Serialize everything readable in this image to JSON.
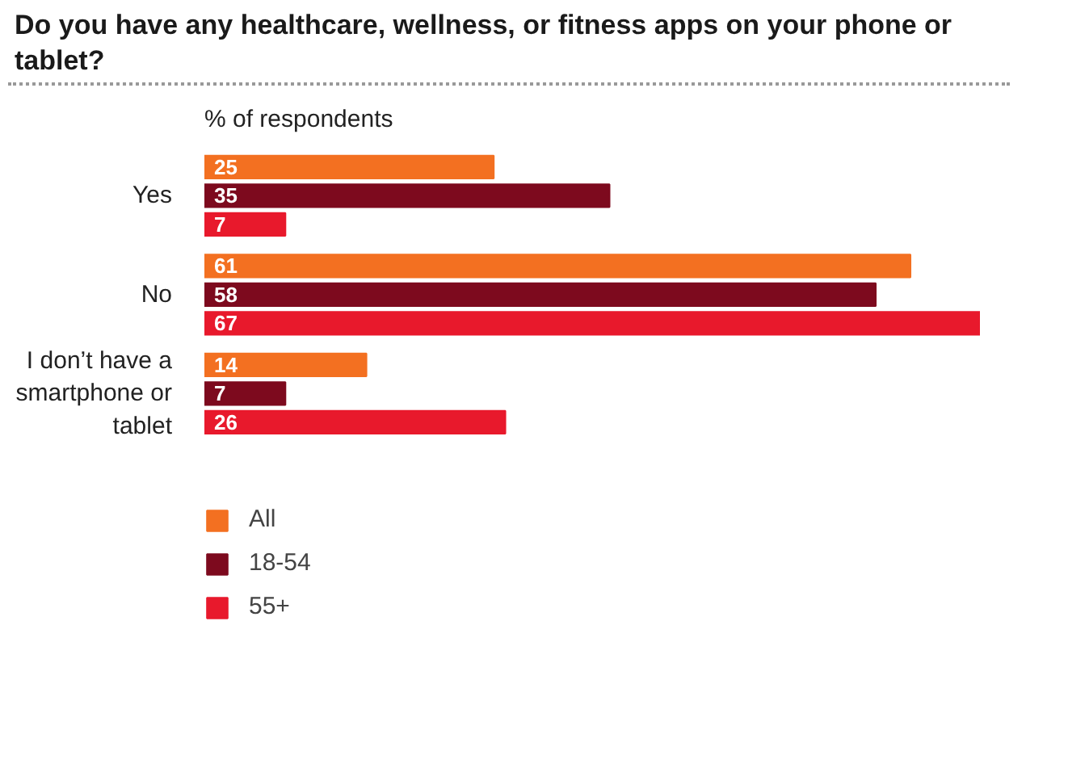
{
  "chart_data": {
    "type": "bar",
    "orientation": "horizontal",
    "title": "Do you have any healthcare, wellness, or fitness apps on your phone or tablet?",
    "subtitle": "% of respondents",
    "categories": [
      "Yes",
      "No",
      "I don’t have a smartphone or tablet"
    ],
    "series": [
      {
        "name": "All",
        "color": "#f37021",
        "values": [
          25,
          61,
          14
        ]
      },
      {
        "name": "18-54",
        "color": "#7d0a1e",
        "values": [
          35,
          58,
          7
        ]
      },
      {
        "name": "55+",
        "color": "#e8192c",
        "values": [
          7,
          67,
          26
        ]
      }
    ],
    "data_labels": true,
    "legend": "bottom",
    "grid": false
  }
}
